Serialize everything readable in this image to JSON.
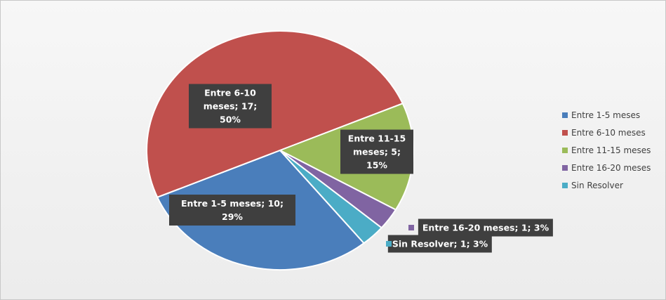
{
  "chart_data": {
    "type": "pie",
    "categories": [
      "Entre 1-5 meses",
      "Entre 6-10 meses",
      "Entre 11-15 meses",
      "Entre 16-20 meses",
      "Sin Resolver"
    ],
    "values": [
      10,
      17,
      5,
      1,
      1
    ],
    "value_labels": [
      "Entre 1-5 meses; 10; 29%",
      "Entre 6-10 meses; 17; 50%",
      "Entre 11-15 meses; 5; 15%",
      "Entre 16-20 meses; 1; 3%",
      "Sin Resolver; 1; 3%"
    ],
    "colors": [
      "#4a7ebb",
      "#c0504d",
      "#9bbb59",
      "#8064a2",
      "#4bacc6"
    ],
    "legend": "right"
  }
}
